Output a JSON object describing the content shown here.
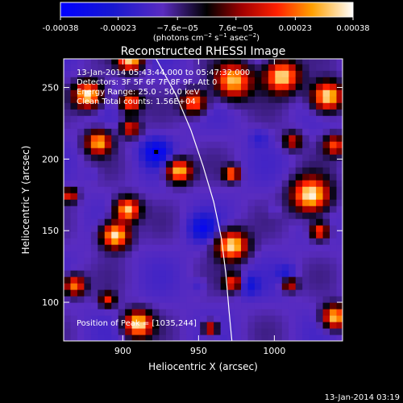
{
  "chart_data": {
    "type": "heatmap",
    "title": "Reconstructed RHESSI Image",
    "xlabel": "Heliocentric X (arcsec)",
    "ylabel": "Heliocentric Y (arcsec)",
    "xlim": [
      861,
      1045
    ],
    "ylim": [
      73,
      270
    ],
    "x_ticks": [
      900,
      950,
      1000
    ],
    "y_ticks": [
      100,
      150,
      200,
      250
    ],
    "colorbar": {
      "min": -0.00038,
      "max": 0.00038,
      "tick_values": [
        -0.00038,
        -0.00023,
        -7.6e-05,
        7.6e-05,
        0.00023,
        0.00038
      ],
      "tick_labels": [
        "-0.00038",
        "-0.00023",
        "−7.6e−05",
        "7.6e−05",
        "0.00023",
        "0.00038"
      ],
      "units_main": "(photons cm",
      "units_sup1": "−2",
      "units_mid": " s",
      "units_sup2": "−1",
      "units_tail": " asec",
      "units_sup3": "−2",
      "units_end": ")"
    },
    "annotations": {
      "time_range": "13-Jan-2014 05:43:44.000 to 05:47:32.000",
      "detectors": "Detectors: 3F 5F 6F 7F 8F 9F, Att 0",
      "energy": "Energy Range: 25.0 - 50.0 keV",
      "method": "Clean    Total counts: 1.56E+04",
      "peak": "Position of Peak = [1035,244]"
    },
    "peak": [
      1035,
      244
    ],
    "limb_curve": [
      [
        922,
        270
      ],
      [
        935,
        245
      ],
      [
        945,
        220
      ],
      [
        953,
        195
      ],
      [
        960,
        170
      ],
      [
        965,
        145
      ],
      [
        968,
        120
      ],
      [
        970,
        95
      ],
      [
        972,
        73
      ]
    ],
    "hot_spots": [
      {
        "x": 905,
        "y": 270,
        "r": 8,
        "v": 0.00034
      },
      {
        "x": 877,
        "y": 245,
        "r": 9,
        "v": 0.00038
      },
      {
        "x": 905,
        "y": 240,
        "r": 7,
        "v": 0.00025
      },
      {
        "x": 884,
        "y": 212,
        "r": 8,
        "v": 0.0003
      },
      {
        "x": 905,
        "y": 222,
        "r": 6,
        "v": 0.00018
      },
      {
        "x": 947,
        "y": 240,
        "r": 8,
        "v": 0.00026
      },
      {
        "x": 973,
        "y": 255,
        "r": 12,
        "v": 0.00032
      },
      {
        "x": 1005,
        "y": 258,
        "r": 11,
        "v": 0.00036
      },
      {
        "x": 1035,
        "y": 244,
        "r": 10,
        "v": 0.00038
      },
      {
        "x": 1040,
        "y": 210,
        "r": 7,
        "v": 0.0002
      },
      {
        "x": 1012,
        "y": 213,
        "r": 6,
        "v": 0.00014
      },
      {
        "x": 937,
        "y": 192,
        "r": 8,
        "v": 0.00034
      },
      {
        "x": 903,
        "y": 165,
        "r": 8,
        "v": 0.00034
      },
      {
        "x": 865,
        "y": 175,
        "r": 5,
        "v": 0.00018
      },
      {
        "x": 895,
        "y": 147,
        "r": 9,
        "v": 0.00038
      },
      {
        "x": 972,
        "y": 190,
        "r": 5,
        "v": 0.00026
      },
      {
        "x": 972,
        "y": 140,
        "r": 10,
        "v": 0.00036
      },
      {
        "x": 973,
        "y": 114,
        "r": 6,
        "v": 0.0002
      },
      {
        "x": 1024,
        "y": 175,
        "r": 12,
        "v": 0.00038
      },
      {
        "x": 1030,
        "y": 150,
        "r": 6,
        "v": 0.00024
      },
      {
        "x": 868,
        "y": 112,
        "r": 7,
        "v": 0.00026
      },
      {
        "x": 910,
        "y": 85,
        "r": 9,
        "v": 0.00036
      },
      {
        "x": 890,
        "y": 102,
        "r": 5,
        "v": 0.00016
      },
      {
        "x": 958,
        "y": 82,
        "r": 5,
        "v": 0.0002
      },
      {
        "x": 1040,
        "y": 90,
        "r": 8,
        "v": 0.00034
      },
      {
        "x": 1010,
        "y": 113,
        "r": 5,
        "v": 0.00018
      }
    ],
    "cold_spots": [
      {
        "x": 922,
        "y": 205,
        "r": 9,
        "v": -0.00034
      },
      {
        "x": 953,
        "y": 152,
        "r": 9,
        "v": -0.0003
      },
      {
        "x": 983,
        "y": 112,
        "r": 7,
        "v": -0.00026
      },
      {
        "x": 1008,
        "y": 120,
        "r": 6,
        "v": -0.00024
      },
      {
        "x": 950,
        "y": 112,
        "r": 5,
        "v": -0.00018
      },
      {
        "x": 990,
        "y": 215,
        "r": 6,
        "v": -0.0002
      },
      {
        "x": 1000,
        "y": 165,
        "r": 5,
        "v": -0.00016
      },
      {
        "x": 880,
        "y": 190,
        "r": 5,
        "v": -0.00016
      }
    ]
  },
  "footer": {
    "timestamp": "13-Jan-2014 03:19"
  }
}
